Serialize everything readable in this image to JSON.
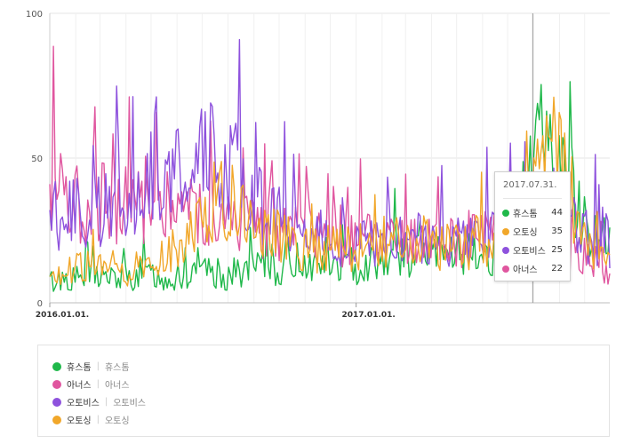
{
  "chart_data": {
    "type": "line",
    "x_ticks": [
      "2016.01.01.",
      "2017.01.01."
    ],
    "y_ticks": [
      "0",
      "50",
      "100"
    ],
    "ylim": [
      0,
      100
    ],
    "x_range": [
      "2016.01.01.",
      "2017.10.31."
    ],
    "grid": true,
    "series": [
      {
        "name": "휴스톰",
        "color": "#1fb84a",
        "values": [
          7,
          8,
          9,
          8,
          9,
          9,
          10,
          9,
          8,
          9,
          8,
          10,
          10,
          9,
          8,
          9,
          8,
          9,
          9,
          9,
          10,
          10,
          9,
          10,
          11,
          11,
          12,
          13,
          12,
          11,
          14,
          15,
          14,
          13,
          14,
          13,
          12,
          13,
          13,
          12,
          14,
          15,
          16,
          17,
          17,
          16,
          17,
          16,
          16,
          17,
          18,
          18,
          17,
          16,
          17,
          17,
          18,
          19,
          22,
          35,
          55,
          58,
          56,
          52,
          45,
          42,
          33,
          27,
          24,
          22,
          20
        ]
      },
      {
        "name": "아너스",
        "color": "#e0569f",
        "values": [
          38,
          42,
          44,
          36,
          33,
          34,
          34,
          36,
          35,
          33,
          35,
          34,
          33,
          33,
          34,
          35,
          36,
          34,
          33,
          32,
          30,
          29,
          28,
          26,
          27,
          28,
          27,
          26,
          25,
          24,
          24,
          23,
          23,
          22,
          23,
          22,
          22,
          21,
          21,
          22,
          23,
          22,
          21,
          20,
          20,
          21,
          21,
          22,
          22,
          21,
          20,
          21,
          22,
          23,
          22,
          23,
          24,
          24,
          24,
          25,
          24,
          23,
          22,
          21,
          20,
          19,
          18,
          17,
          15,
          12,
          11
        ]
      },
      {
        "name": "오토비스",
        "color": "#8e52dd",
        "values": [
          33,
          31,
          30,
          32,
          30,
          29,
          31,
          32,
          34,
          36,
          37,
          38,
          42,
          48,
          45,
          44,
          48,
          46,
          44,
          50,
          52,
          48,
          46,
          47,
          43,
          40,
          34,
          32,
          30,
          28,
          27,
          26,
          25,
          23,
          23,
          22,
          21,
          21,
          21,
          20,
          20,
          21,
          21,
          22,
          22,
          22,
          23,
          23,
          22,
          22,
          22,
          23,
          22,
          23,
          23,
          24,
          25,
          26,
          26,
          27,
          26,
          27,
          28,
          27,
          28,
          27,
          26,
          24,
          23,
          22,
          21
        ]
      },
      {
        "name": "오토싱",
        "color": "#f1a72a",
        "values": [
          11,
          11,
          12,
          11,
          12,
          12,
          11,
          12,
          12,
          12,
          11,
          12,
          12,
          13,
          15,
          17,
          20,
          22,
          25,
          30,
          33,
          36,
          35,
          34,
          32,
          30,
          28,
          25,
          23,
          22,
          21,
          20,
          20,
          19,
          18,
          19,
          19,
          18,
          19,
          20,
          20,
          21,
          21,
          21,
          20,
          20,
          21,
          21,
          20,
          20,
          19,
          19,
          20,
          20,
          21,
          20,
          20,
          21,
          22,
          32,
          50,
          60,
          58,
          55,
          48,
          38,
          30,
          22,
          18,
          16,
          15
        ]
      }
    ],
    "highlight": {
      "x": "2017.07.31.",
      "values": {
        "휴스톰": 44,
        "오토싱": 35,
        "오토비스": 25,
        "아너스": 22
      }
    }
  },
  "legend": [
    {
      "name": "휴스톰",
      "keyword": "휴스톰",
      "color": "#1fb84a"
    },
    {
      "name": "아너스",
      "keyword": "아너스",
      "color": "#e0569f"
    },
    {
      "name": "오토비스",
      "keyword": "오토비스",
      "color": "#8e52dd"
    },
    {
      "name": "오토싱",
      "keyword": "오토싱",
      "color": "#f1a72a"
    }
  ],
  "tooltip": {
    "date": "2017.07.31.",
    "rows": [
      {
        "name": "휴스톰",
        "value": "44",
        "color": "#1fb84a"
      },
      {
        "name": "오토싱",
        "value": "35",
        "color": "#f1a72a"
      },
      {
        "name": "오토비스",
        "value": "25",
        "color": "#8e52dd"
      },
      {
        "name": "아너스",
        "value": "22",
        "color": "#e0569f"
      }
    ]
  }
}
